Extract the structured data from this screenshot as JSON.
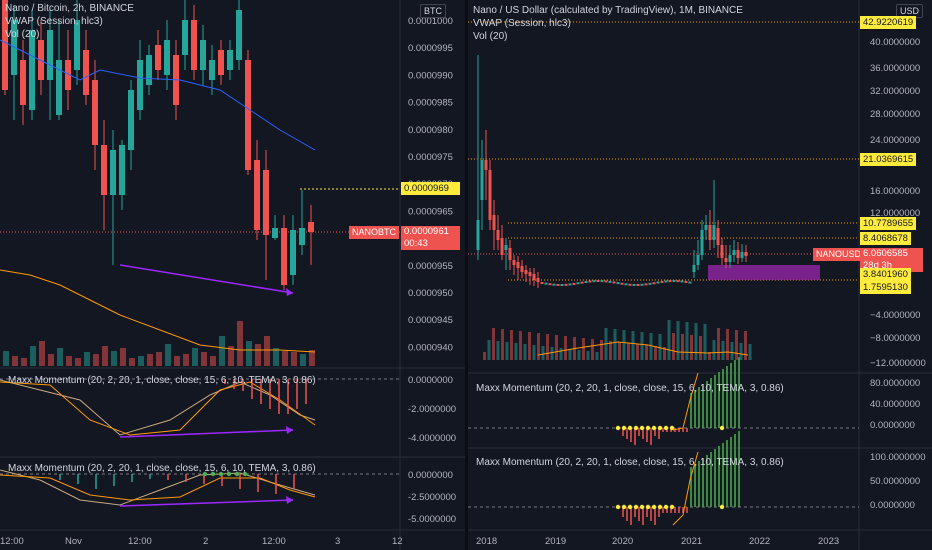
{
  "left_panel": {
    "title": "Nano / Bitcoin, 2h, BINANCE",
    "vwap": "VWAP (Session, hlc3)",
    "vol": "Vol (20)",
    "currency_badge": "BTC",
    "price_axis": [
      "0.0001000",
      "0.0000995",
      "0.0000990",
      "0.0000985",
      "0.0000980",
      "0.0000975",
      "0.0000970",
      "0.0000965",
      "0.0000960",
      "0.0000955",
      "0.0000950",
      "0.0000945",
      "0.0000940"
    ],
    "marker_price": "0.0000969",
    "symbol_label": "NANOBTC",
    "last_price": "0.0000961",
    "countdown": "00:43",
    "ind1_title": "Maxx Momentum (20, 2, 20, 1, close, close, 15, 6, 10, TEMA, 3, 0.86)",
    "ind1_axis": [
      "0.0000000",
      "-2.0000000",
      "-4.0000000"
    ],
    "ind2_title": "Maxx Momentum (20, 2, 20, 1, close, close, 15, 6, 10, TEMA, 3, 0.86)",
    "ind2_axis": [
      "0.0000000",
      "-2.5000000",
      "-5.0000000"
    ],
    "time_axis": [
      "12:00",
      "Nov",
      "12:00",
      "2",
      "12:00",
      "3",
      "12"
    ]
  },
  "right_panel": {
    "title": "Nano / US Dollar (calculated by TradingView), 1M, BINANCE",
    "vwap": "VWAP (Session, hlc3)",
    "vol": "Vol (20)",
    "currency_badge": "USD",
    "price_axis": [
      "40.0000000",
      "36.0000000",
      "32.0000000",
      "28.0000000",
      "24.0000000",
      "16.0000000",
      "12.0000000",
      "−4.0000000",
      "−8.0000000",
      "−12.0000000"
    ],
    "tag_top": "42.9220619",
    "tag_21": "21.0369615",
    "tag_10": "10.7789655",
    "tag_8": "8.4068678",
    "symbol_label": "NANOUSD",
    "last_price": "6.0606585",
    "countdown": "28d 3h",
    "tag_3": "3.8401960",
    "tag_1": "1.7595130",
    "ind1_title": "Maxx Momentum (20, 2, 20, 1, close, close, 15, 6, 10, TEMA, 3, 0.86)",
    "ind1_axis": [
      "80.0000000",
      "40.0000000",
      "0.0000000"
    ],
    "ind2_title": "Maxx Momentum (20, 2, 20, 1, close, close, 15, 6, 10, TEMA, 3, 0.86)",
    "ind2_axis": [
      "100.0000000",
      "50.0000000",
      "0.0000000"
    ],
    "time_axis": [
      "2018",
      "2019",
      "2020",
      "2021",
      "2022",
      "2023"
    ]
  },
  "colors": {
    "bg": "#131722",
    "up": "#26a69a",
    "down": "#ef5350",
    "marker_yellow": "#ffeb3b",
    "divergence": "#9c27ff",
    "vwap_line": "#2962ff",
    "vol_ma": "#ff9800"
  }
}
